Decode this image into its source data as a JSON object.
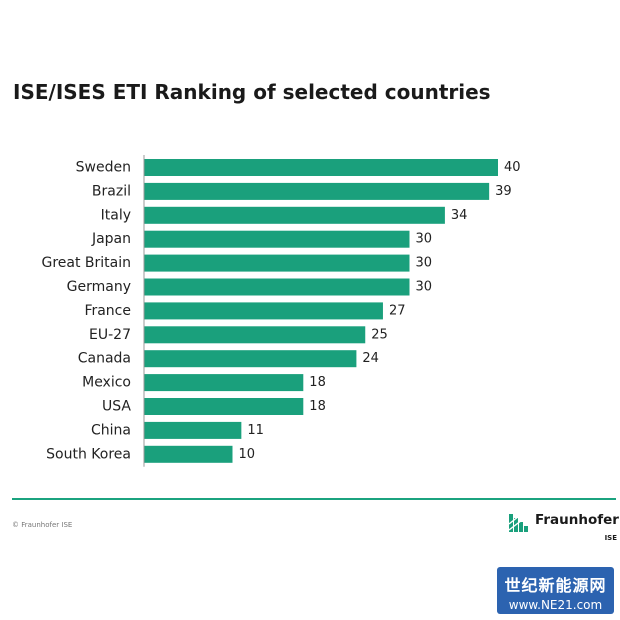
{
  "chart_data": {
    "type": "bar",
    "orientation": "horizontal",
    "title": "ISE/ISES ETI Ranking of selected countries",
    "xlabel": "",
    "ylabel": "",
    "categories": [
      "Sweden",
      "Brazil",
      "Italy",
      "Japan",
      "Great Britain",
      "Germany",
      "France",
      "EU-27",
      "Canada",
      "Mexico",
      "USA",
      "China",
      "South Korea"
    ],
    "values": [
      40,
      39,
      34,
      30,
      30,
      30,
      27,
      25,
      24,
      18,
      18,
      11,
      10
    ],
    "xlim": [
      0,
      40
    ],
    "grid": false,
    "legend": "none",
    "data_labels": true,
    "bar_color": "#1aa07c"
  },
  "footer": {
    "copyright": "© Fraunhofer ISE",
    "logo_text": "Fraunhofer",
    "logo_sub": "ISE",
    "rule_color": "#1ba37f"
  },
  "watermark": {
    "line1": "世纪新能源网",
    "line2": "www.NE21.com",
    "color": "#2c63b0"
  }
}
